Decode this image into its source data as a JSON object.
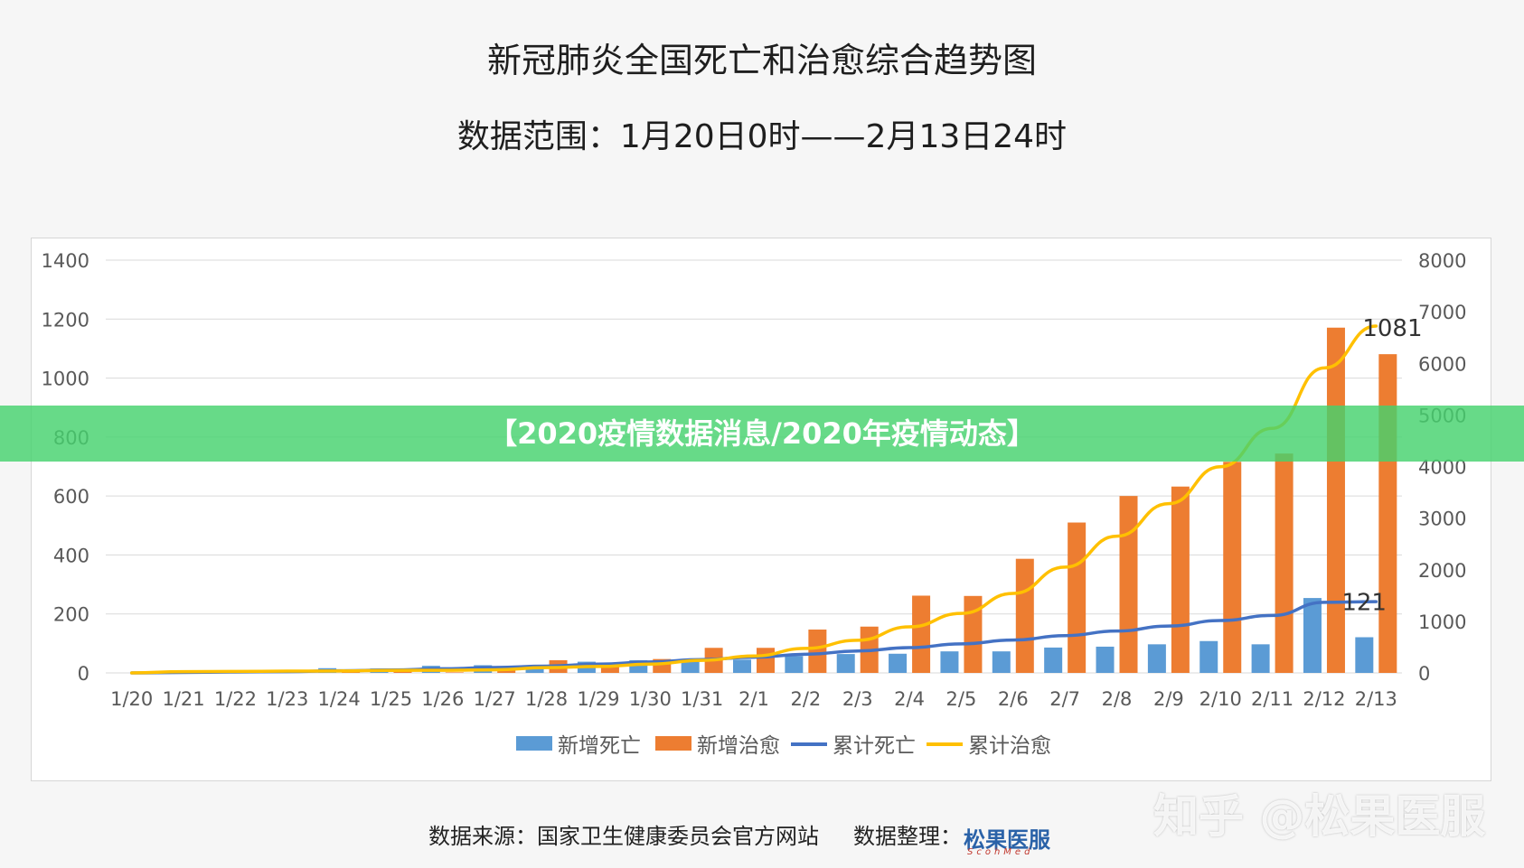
{
  "header": {
    "title": "新冠肺炎全国死亡和治愈综合趋势图",
    "subtitle": "数据范围：1月20日0时——2月13日24时"
  },
  "banner": {
    "text": "【2020疫情数据消息/2020年疫情动态】"
  },
  "footer": {
    "source": "数据来源：国家卫生健康委员会官方网站",
    "organizer": "数据整理：",
    "logo_text": "松果医服",
    "logo_sub": "ScohMed",
    "watermark": "知乎 @松果医服"
  },
  "chart_data": {
    "type": "bar",
    "categories": [
      "1/20",
      "1/21",
      "1/22",
      "1/23",
      "1/24",
      "1/25",
      "1/26",
      "1/27",
      "1/28",
      "1/29",
      "1/30",
      "1/31",
      "2/1",
      "2/2",
      "2/3",
      "2/4",
      "2/5",
      "2/6",
      "2/7",
      "2/8",
      "2/9",
      "2/10",
      "2/11",
      "2/12",
      "2/13"
    ],
    "y_left": {
      "ylim": [
        0,
        1400
      ],
      "ticks": [
        0,
        200,
        400,
        600,
        800,
        1000,
        1200,
        1400
      ]
    },
    "y_right": {
      "ylim": [
        0,
        8000
      ],
      "ticks": [
        0,
        1000,
        2000,
        3000,
        4000,
        5000,
        6000,
        7000,
        8000
      ]
    },
    "grid": true,
    "legend_position": "bottom",
    "series": [
      {
        "name": "新增死亡",
        "kind": "bar",
        "axis": "left",
        "color": "#5b9bd5",
        "values": [
          0,
          3,
          8,
          8,
          16,
          15,
          24,
          26,
          26,
          38,
          43,
          46,
          45,
          57,
          64,
          65,
          73,
          73,
          86,
          89,
          97,
          108,
          97,
          254,
          121
        ]
      },
      {
        "name": "新增治愈",
        "kind": "bar",
        "axis": "left",
        "color": "#ed7d31",
        "values": [
          0,
          3,
          3,
          6,
          3,
          11,
          2,
          9,
          43,
          21,
          47,
          85,
          85,
          147,
          157,
          262,
          261,
          387,
          510,
          600,
          632,
          716,
          744,
          1171,
          1081
        ]
      },
      {
        "name": "累计死亡",
        "kind": "line",
        "axis": "right",
        "color": "#4472c4",
        "values": [
          0,
          9,
          17,
          25,
          41,
          56,
          80,
          106,
          132,
          170,
          213,
          259,
          304,
          361,
          425,
          490,
          563,
          636,
          722,
          811,
          908,
          1016,
          1113,
          1367,
          1380
        ]
      },
      {
        "name": "累计治愈",
        "kind": "line",
        "axis": "right",
        "color": "#ffc000",
        "values": [
          0,
          25,
          28,
          34,
          38,
          49,
          51,
          60,
          103,
          124,
          171,
          243,
          328,
          475,
          632,
          892,
          1153,
          1540,
          2050,
          2649,
          3281,
          3996,
          4740,
          5911,
          6723
        ]
      }
    ],
    "annotations": [
      {
        "text": "1081",
        "category": "2/13",
        "series": "新增治愈"
      },
      {
        "text": "121",
        "category": "2/13",
        "series": "新增死亡"
      }
    ]
  }
}
